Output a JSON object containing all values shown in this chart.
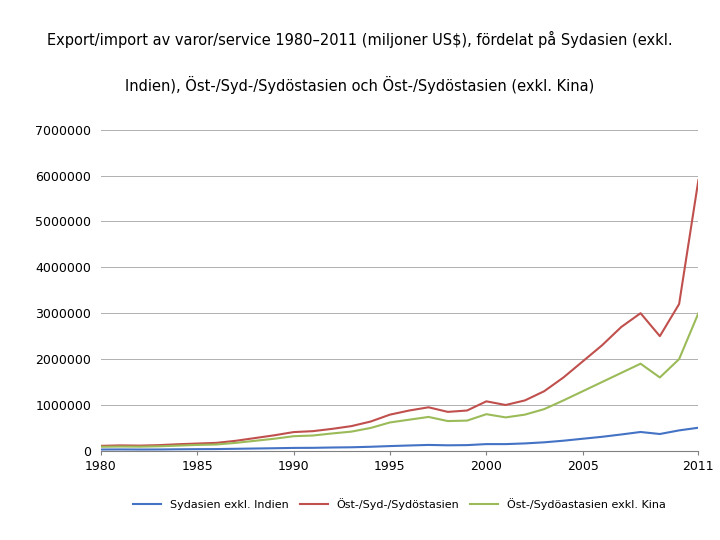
{
  "title_line1": "Export/import av varor/service 1980–2011 (miljoner US$), fördelat på Sydasien (exkl.",
  "title_line2": "Indien), Öst-/Syd-/Sydöstasien och Öst-/Sydöstasien (exkl. Kina)",
  "title_bg": "#dce6f1",
  "plot_bg": "#ffffff",
  "years": [
    1980,
    1981,
    1982,
    1983,
    1984,
    1985,
    1986,
    1987,
    1988,
    1989,
    1990,
    1991,
    1992,
    1993,
    1994,
    1995,
    1996,
    1997,
    1998,
    1999,
    2000,
    2001,
    2002,
    2003,
    2004,
    2005,
    2006,
    2007,
    2008,
    2009,
    2010,
    2011
  ],
  "sydasien": [
    30000,
    32000,
    30000,
    31000,
    35000,
    38000,
    40000,
    46000,
    52000,
    58000,
    65000,
    67000,
    74000,
    79000,
    90000,
    105000,
    118000,
    130000,
    122000,
    126000,
    148000,
    148000,
    163000,
    187000,
    222000,
    265000,
    307000,
    358000,
    412000,
    368000,
    447000,
    505000
  ],
  "ost_syd": [
    110000,
    120000,
    115000,
    125000,
    145000,
    160000,
    175000,
    220000,
    280000,
    340000,
    410000,
    430000,
    480000,
    540000,
    640000,
    790000,
    880000,
    950000,
    850000,
    880000,
    1080000,
    1000000,
    1100000,
    1300000,
    1600000,
    1950000,
    2300000,
    2700000,
    3000000,
    2500000,
    3200000,
    5900000
  ],
  "ost_exkl_kina": [
    90000,
    95000,
    92000,
    100000,
    115000,
    130000,
    140000,
    175000,
    220000,
    265000,
    320000,
    335000,
    380000,
    420000,
    500000,
    620000,
    680000,
    740000,
    650000,
    660000,
    800000,
    730000,
    790000,
    910000,
    1100000,
    1300000,
    1500000,
    1700000,
    1900000,
    1600000,
    2000000,
    3000000
  ],
  "sydasien_color": "#4472c4",
  "ost_syd_color": "#c0504d",
  "ost_exkl_kina_color": "#9bbb59",
  "legend_labels": [
    "Sydasien exkl. Indien",
    "Öst-/Syd-/Sydöstasien",
    "Öst-/Sydöastasien exkl. Kina"
  ],
  "ylim": [
    0,
    7000000
  ],
  "yticks": [
    0,
    1000000,
    2000000,
    3000000,
    4000000,
    5000000,
    6000000,
    7000000
  ],
  "xticks": [
    1980,
    1985,
    1990,
    1995,
    2000,
    2005,
    2011
  ]
}
